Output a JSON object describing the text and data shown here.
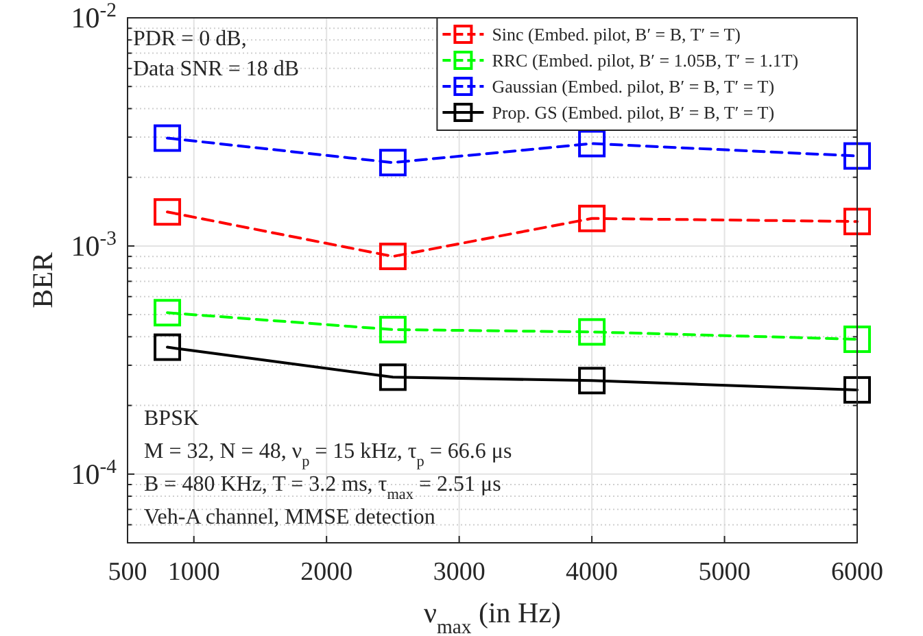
{
  "chart_data": {
    "type": "line",
    "ylabel": "BER",
    "xlabel": "ν$_{max}$ (in Hz)",
    "x": [
      800,
      2500,
      4000,
      6000
    ],
    "xlim": [
      500,
      6000
    ],
    "xticks": [
      500,
      1000,
      2000,
      3000,
      4000,
      5000,
      6000
    ],
    "ylim": [
      5e-05,
      0.01
    ],
    "yticks": [
      {
        "value": 0.0001,
        "label": "10$^{-4}$"
      },
      {
        "value": 0.001,
        "label": "10$^{-3}$"
      },
      {
        "value": 0.01,
        "label": "10$^{-2}$"
      }
    ],
    "log": "y",
    "grid": true,
    "legend": "top right",
    "marker": "square",
    "series": [
      {
        "name": "Sinc (Embed. pilot, B′ = B, T′ = T)",
        "color": "#ff0000",
        "line_style": "dashed",
        "values": [
          0.00141,
          0.0009,
          0.00132,
          0.00128
        ]
      },
      {
        "name": "RRC (Embed. pilot, B′ = 1.05B, T′ = 1.1T)",
        "color": "#00ff00",
        "line_style": "dashed",
        "values": [
          0.00051,
          0.00043,
          0.00042,
          0.00039
        ]
      },
      {
        "name": "Gaussian (Embed. pilot, B′ = B, T′ = T)",
        "color": "#0000ff",
        "line_style": "dashed",
        "values": [
          0.00297,
          0.00232,
          0.00281,
          0.00248
        ]
      },
      {
        "name": "Prop. GS (Embed. pilot, B′ = B, T′ = T)",
        "color": "#000000",
        "line_style": "solid",
        "values": [
          0.00036,
          0.000266,
          0.000257,
          0.000234
        ]
      }
    ],
    "annotations": [
      "PDR = 0 dB,",
      "Data SNR = 18 dB",
      "BPSK",
      "M = 32, N = 48, ν$_{p}$ = 15 kHz, τ$_{p}$ = 66.6 μs",
      "B = 480 KHz, T = 3.2 ms, τ$_{max}$ = 2.51 μs",
      "Veh-A channel, MMSE detection"
    ]
  }
}
